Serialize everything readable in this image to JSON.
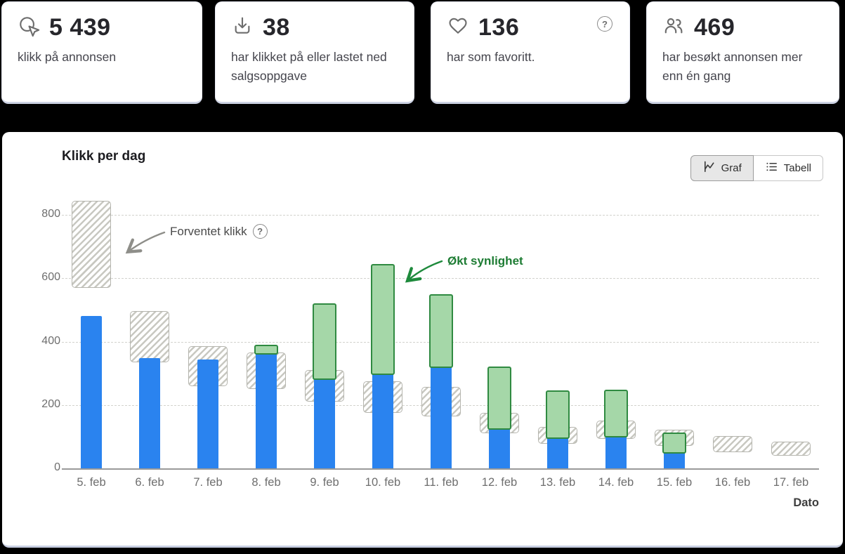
{
  "stats": [
    {
      "icon": "cursor-click-icon",
      "value": "5 439",
      "label": "klikk på annonsen"
    },
    {
      "icon": "download-icon",
      "value": "38",
      "label": "har klikket på eller lastet ned salgsoppgave"
    },
    {
      "icon": "heart-icon",
      "value": "136",
      "label": "har som favoritt.",
      "help_icon": "?"
    },
    {
      "icon": "users-icon",
      "value": "469",
      "label": "har besøkt annonsen mer enn én gang"
    }
  ],
  "panel": {
    "title": "Klikk per dag",
    "toolbar": {
      "graf_label": "Graf",
      "tabell_label": "Tabell",
      "active": "Graf"
    }
  },
  "chart_data": {
    "type": "bar",
    "title": "Klikk per dag",
    "xlabel": "Dato",
    "ylabel": "",
    "ylim": [
      0,
      860
    ],
    "yticks": [
      0,
      200,
      400,
      600,
      800
    ],
    "grid": "horizontal dashed",
    "legend_position": "none",
    "categories": [
      "5. feb",
      "6. feb",
      "7. feb",
      "8. feb",
      "9. feb",
      "10. feb",
      "11. feb",
      "12. feb",
      "13. feb",
      "14. feb",
      "15. feb",
      "16. feb",
      "17. feb"
    ],
    "series": [
      {
        "name": "Klikk",
        "style": "solid-blue",
        "color": "#2a83ef",
        "values": [
          480,
          347,
          344,
          368,
          288,
          303,
          325,
          131,
          102,
          107,
          56,
          0,
          0
        ]
      },
      {
        "name": "Økt synlighet",
        "style": "stacked-green-on-top",
        "fill": "#a5d7a8",
        "border": "#2f8a41",
        "top_values": [
          null,
          null,
          null,
          390,
          520,
          645,
          549,
          321,
          247,
          249,
          113,
          null,
          null
        ]
      },
      {
        "name": "Forventet klikk",
        "style": "hatched-range",
        "border": "#b5b5ae",
        "ranges": [
          [
            570,
            845
          ],
          [
            335,
            497
          ],
          [
            260,
            385
          ],
          [
            250,
            365
          ],
          [
            210,
            310
          ],
          [
            175,
            275
          ],
          [
            163,
            257
          ],
          [
            110,
            175
          ],
          [
            78,
            130
          ],
          [
            93,
            150
          ],
          [
            71,
            122
          ],
          [
            52,
            102
          ],
          [
            39,
            85
          ]
        ]
      }
    ],
    "annotations": [
      {
        "text": "Forventet klikk",
        "color": "#4a4a4a",
        "has_help_icon": true,
        "help_icon": "?",
        "arrow": "gray curved arrow to 5. feb hatched bar"
      },
      {
        "text": "Økt synlighet",
        "color": "#1d7c33",
        "arrow": "green arrow to 10. feb green bar"
      }
    ]
  }
}
